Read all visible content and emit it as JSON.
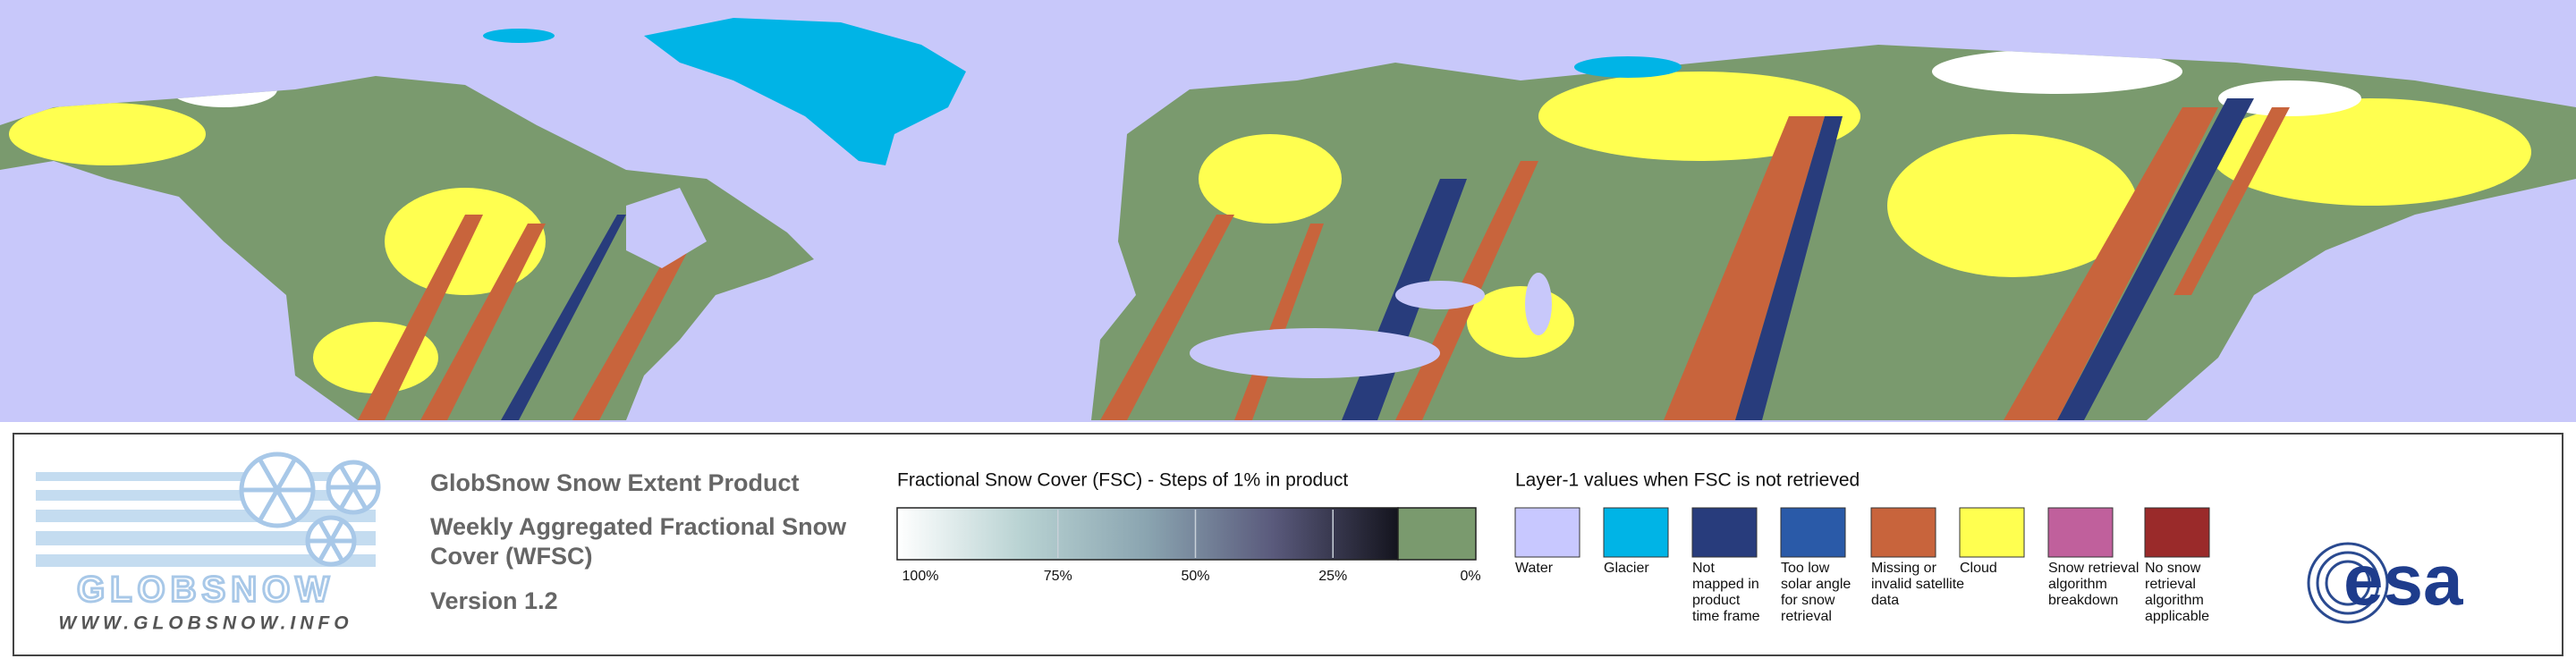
{
  "logo": {
    "name": "GLOBSNOW",
    "url": "WWW.GLOBSNOW.INFO"
  },
  "product": {
    "title": "GlobSnow Snow Extent Product",
    "subtitle_lines": [
      "Weekly Aggregated Fractional Snow",
      "Cover (WFSC)"
    ],
    "version": "Version 1.2"
  },
  "colorbar": {
    "title": "Fractional Snow Cover (FSC) - Steps of 1% in product",
    "ticks": [
      "100%",
      "75%",
      "50%",
      "25%",
      "0%"
    ]
  },
  "layer1": {
    "title": "Layer-1 values when FSC is not retrieved",
    "items": [
      {
        "color": "#c8c8ff",
        "lines": [
          "Water"
        ]
      },
      {
        "color": "#00b4e6",
        "lines": [
          "Glacier"
        ]
      },
      {
        "color": "#283c7c",
        "lines": [
          "Not",
          "mapped in",
          "product",
          "time frame"
        ]
      },
      {
        "color": "#2a5aa8",
        "lines": [
          "Too low",
          "solar angle",
          "for snow",
          "retrieval"
        ]
      },
      {
        "color": "#c8643c",
        "lines": [
          "Missing or",
          "invalid satellite",
          "data"
        ]
      },
      {
        "color": "#ffff50",
        "lines": [
          "Cloud"
        ]
      },
      {
        "color": "#c0609c",
        "lines": [
          "Snow retrieval",
          "algorithm",
          "breakdown"
        ]
      },
      {
        "color": "#9a2a2a",
        "lines": [
          "No snow",
          "retrieval",
          "algorithm",
          "applicable"
        ]
      }
    ]
  },
  "agency": "esa"
}
